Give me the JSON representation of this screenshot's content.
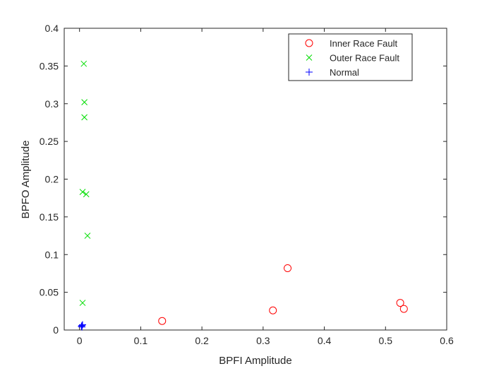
{
  "chart_data": {
    "type": "scatter",
    "title": "",
    "xlabel": "BPFI Amplitude",
    "ylabel": "BPFO Amplitude",
    "xlim": [
      -0.025,
      0.6
    ],
    "ylim": [
      0,
      0.4
    ],
    "xticks": [
      0,
      0.1,
      0.2,
      0.3,
      0.4,
      0.5,
      0.6
    ],
    "xtick_labels": [
      "0",
      "0.1",
      "0.2",
      "0.3",
      "0.4",
      "0.5",
      "0.6"
    ],
    "yticks": [
      0,
      0.05,
      0.1,
      0.15,
      0.2,
      0.25,
      0.3,
      0.35,
      0.4
    ],
    "ytick_labels": [
      "0",
      "0.05",
      "0.1",
      "0.15",
      "0.2",
      "0.25",
      "0.3",
      "0.35",
      "0.4"
    ],
    "grid": false,
    "legend_position": "top-right",
    "series": [
      {
        "name": "Inner Race Fault",
        "marker": "circle",
        "color": "#ff0000",
        "points": [
          {
            "x": 0.135,
            "y": 0.012
          },
          {
            "x": 0.316,
            "y": 0.026
          },
          {
            "x": 0.34,
            "y": 0.082
          },
          {
            "x": 0.524,
            "y": 0.036
          },
          {
            "x": 0.53,
            "y": 0.028
          }
        ]
      },
      {
        "name": "Outer Race Fault",
        "marker": "x",
        "color": "#00dd00",
        "points": [
          {
            "x": 0.007,
            "y": 0.353
          },
          {
            "x": 0.008,
            "y": 0.302
          },
          {
            "x": 0.008,
            "y": 0.282
          },
          {
            "x": 0.005,
            "y": 0.183
          },
          {
            "x": 0.011,
            "y": 0.18
          },
          {
            "x": 0.013,
            "y": 0.125
          },
          {
            "x": 0.005,
            "y": 0.036
          }
        ]
      },
      {
        "name": "Normal",
        "marker": "plus",
        "color": "#0000ff",
        "points": [
          {
            "x": 0.003,
            "y": 0.005
          },
          {
            "x": 0.004,
            "y": 0.006
          },
          {
            "x": 0.005,
            "y": 0.007
          },
          {
            "x": 0.004,
            "y": 0.004
          }
        ]
      }
    ]
  }
}
